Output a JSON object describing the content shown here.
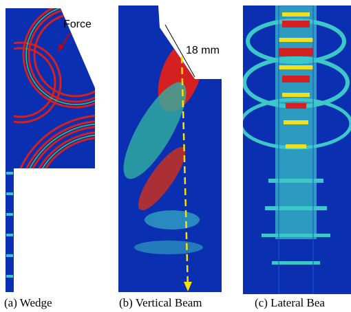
{
  "figure": {
    "panels": [
      {
        "caption": "(a) Wedge",
        "annotation": "Force"
      },
      {
        "caption": "(b) Vertical Beam",
        "annotation": "18 mm"
      },
      {
        "caption": "(c) Lateral Bea"
      }
    ]
  }
}
